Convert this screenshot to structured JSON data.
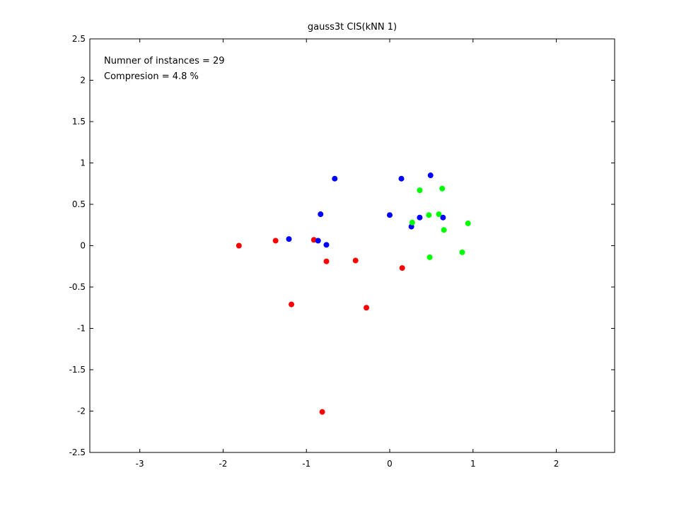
{
  "chart_data": {
    "type": "scatter",
    "title": "gauss3t CIS(kNN 1)",
    "xlabel": "",
    "ylabel": "",
    "xlim": [
      -3.6,
      2.7
    ],
    "ylim": [
      -2.5,
      2.5
    ],
    "xticks": [
      -3,
      -2,
      -1,
      0,
      1,
      2
    ],
    "yticks": [
      -2.5,
      -2,
      -1.5,
      -1,
      -0.5,
      0,
      0.5,
      1,
      1.5,
      2,
      2.5
    ],
    "grid": false,
    "annotations": [
      "Numner of instances = 29",
      "Compresion = 4.8 %"
    ],
    "series": [
      {
        "color": "#ff0000",
        "points": [
          [
            -1.81,
            0.0
          ],
          [
            -1.37,
            0.06
          ],
          [
            -0.91,
            0.07
          ],
          [
            -0.76,
            -0.19
          ],
          [
            -0.41,
            -0.18
          ],
          [
            -1.18,
            -0.71
          ],
          [
            -0.28,
            -0.75
          ],
          [
            0.15,
            -0.27
          ],
          [
            -0.81,
            -2.01
          ]
        ]
      },
      {
        "color": "#0000ff",
        "points": [
          [
            -1.21,
            0.08
          ],
          [
            -0.86,
            0.06
          ],
          [
            -0.76,
            0.01
          ],
          [
            -0.83,
            0.38
          ],
          [
            -0.66,
            0.81
          ],
          [
            0.0,
            0.37
          ],
          [
            0.14,
            0.81
          ],
          [
            0.49,
            0.85
          ],
          [
            0.36,
            0.34
          ],
          [
            0.26,
            0.23
          ],
          [
            0.64,
            0.34
          ]
        ]
      },
      {
        "color": "#00ff00",
        "points": [
          [
            0.36,
            0.67
          ],
          [
            0.63,
            0.69
          ],
          [
            0.27,
            0.28
          ],
          [
            0.47,
            0.37
          ],
          [
            0.59,
            0.38
          ],
          [
            0.65,
            0.19
          ],
          [
            0.94,
            0.27
          ],
          [
            0.87,
            -0.08
          ],
          [
            0.48,
            -0.14
          ]
        ]
      }
    ]
  }
}
